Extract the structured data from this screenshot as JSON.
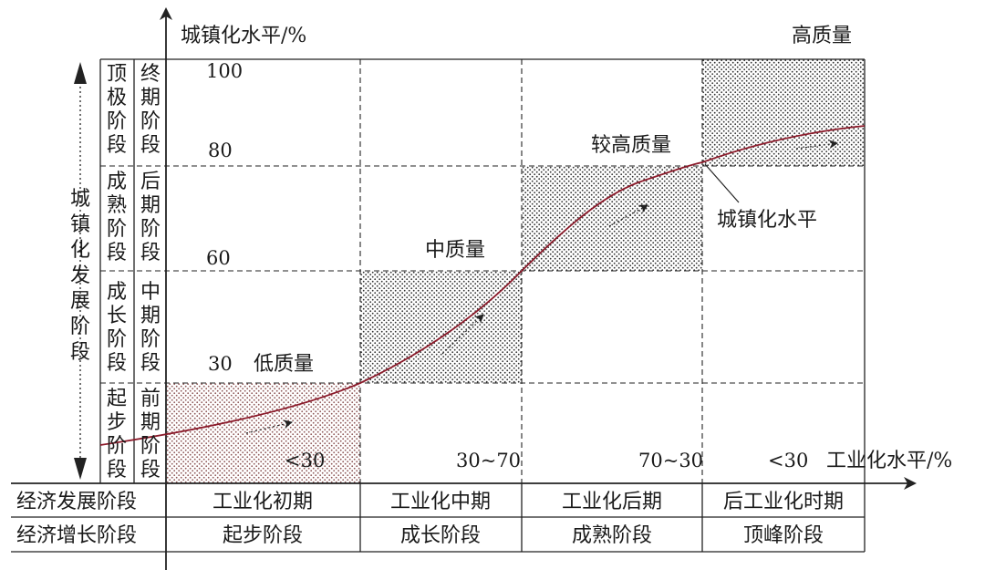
{
  "y_axis_title": "城镇化水平/%",
  "x_axis_title": "工业化水平/%",
  "y_ticks": [
    "100",
    "80",
    "60",
    "30"
  ],
  "x_ticks": [
    "<30",
    "30~70",
    "70~30",
    "<30"
  ],
  "quality_labels": {
    "low": "低质量",
    "mid": "中质量",
    "higher": "较高质量",
    "high": "高质量"
  },
  "curve_label": "城镇化水平",
  "urbanization_stage_title": [
    "城",
    "镇",
    "化",
    "发",
    "展",
    "阶",
    "段"
  ],
  "stages_col1": [
    [
      "顶",
      "极",
      "阶",
      "段"
    ],
    [
      "成",
      "熟",
      "阶",
      "段"
    ],
    [
      "成",
      "长",
      "阶",
      "段"
    ],
    [
      "起",
      "步",
      "阶",
      "段"
    ]
  ],
  "stages_col2": [
    [
      "终",
      "期",
      "阶",
      "段"
    ],
    [
      "后",
      "期",
      "阶",
      "段"
    ],
    [
      "中",
      "期",
      "阶",
      "段"
    ],
    [
      "前",
      "期",
      "阶",
      "段"
    ]
  ],
  "table": {
    "row1_header": "经济发展阶段",
    "row1": [
      "工业化初期",
      "工业化中期",
      "工业化后期",
      "后工业化时期"
    ],
    "row2_header": "经济增长阶段",
    "row2": [
      "起步阶段",
      "成长阶段",
      "成熟阶段",
      "顶峰阶段"
    ]
  },
  "colors": {
    "curve": "#8b1a2a",
    "grid": "#222222"
  }
}
